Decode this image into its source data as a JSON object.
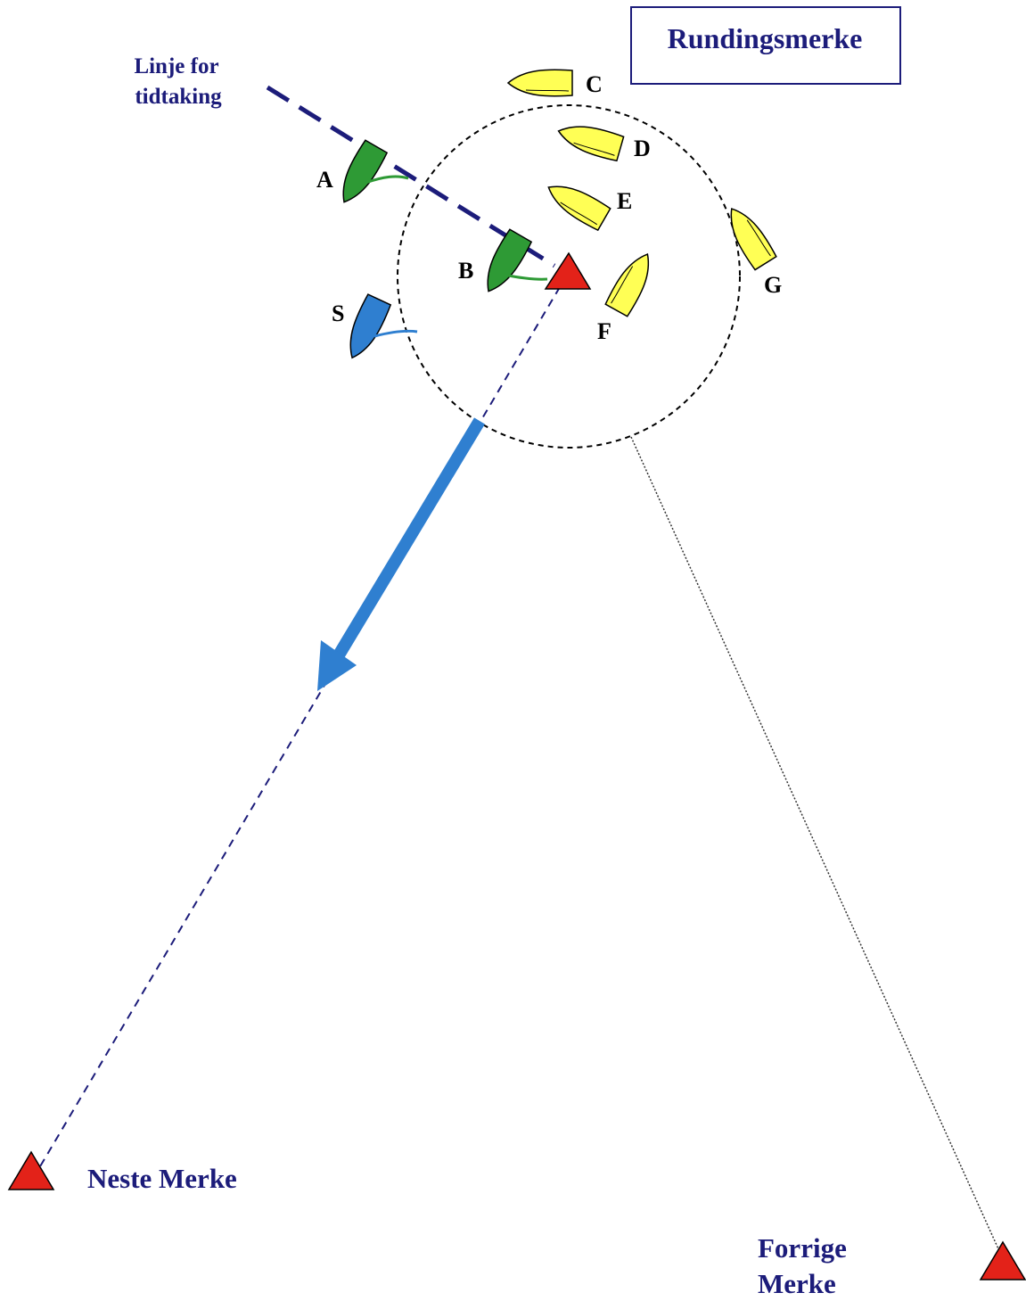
{
  "title": "Rundingsmerke",
  "timing_line_label": [
    "Linje for",
    "tidtaking"
  ],
  "boats": [
    {
      "label": "A"
    },
    {
      "label": "B"
    },
    {
      "label": "C"
    },
    {
      "label": "D"
    },
    {
      "label": "E"
    },
    {
      "label": "F"
    },
    {
      "label": "G"
    },
    {
      "label": "S"
    }
  ],
  "next_mark": "Neste Merke",
  "previous_mark": [
    "Forrige",
    "Merke"
  ]
}
